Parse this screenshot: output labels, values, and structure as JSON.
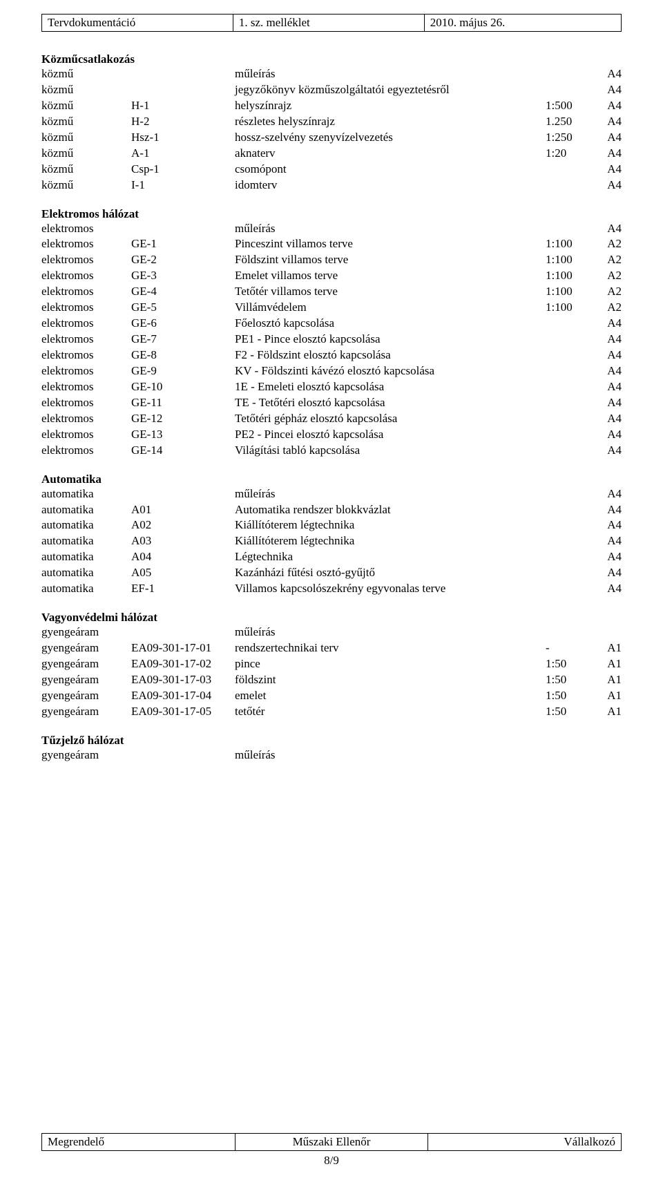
{
  "header": {
    "c1": "Tervdokumentáció",
    "c2": "1. sz. melléklet",
    "c3": "2010. május 26."
  },
  "sections": [
    {
      "title": "Közműcsatlakozás",
      "rows": [
        {
          "c1": "közmű",
          "c2": "",
          "c3": "műleírás",
          "c4": "",
          "c5": "A4"
        },
        {
          "c1": "közmű",
          "c2": "",
          "c3": "jegyzőkönyv közműszolgáltatói egyeztetésről",
          "c4": "",
          "c5": "A4"
        },
        {
          "c1": "közmű",
          "c2": "H-1",
          "c3": "helyszínrajz",
          "c4": "1:500",
          "c5": "A4"
        },
        {
          "c1": "közmű",
          "c2": "H-2",
          "c3": "részletes helyszínrajz",
          "c4": "1.250",
          "c5": "A4"
        },
        {
          "c1": "közmű",
          "c2": "Hsz-1",
          "c3": "hossz-szelvény szenyvízelvezetés",
          "c4": "1:250",
          "c5": "A4"
        },
        {
          "c1": "közmű",
          "c2": "A-1",
          "c3": "aknaterv",
          "c4": "1:20",
          "c5": "A4"
        },
        {
          "c1": "közmű",
          "c2": "Csp-1",
          "c3": "csomópont",
          "c4": "",
          "c5": "A4"
        },
        {
          "c1": "közmű",
          "c2": "I-1",
          "c3": "idomterv",
          "c4": "",
          "c5": "A4"
        }
      ]
    },
    {
      "title": "Elektromos hálózat",
      "rows": [
        {
          "c1": "elektromos",
          "c2": "",
          "c3": "műleírás",
          "c4": "",
          "c5": "A4"
        },
        {
          "c1": "elektromos",
          "c2": "GE-1",
          "c3": "Pinceszint villamos terve",
          "c4": "1:100",
          "c5": "A2"
        },
        {
          "c1": "elektromos",
          "c2": "GE-2",
          "c3": "Földszint villamos terve",
          "c4": "1:100",
          "c5": "A2"
        },
        {
          "c1": "elektromos",
          "c2": "GE-3",
          "c3": "Emelet villamos terve",
          "c4": "1:100",
          "c5": "A2"
        },
        {
          "c1": "elektromos",
          "c2": "GE-4",
          "c3": "Tetőtér villamos terve",
          "c4": "1:100",
          "c5": "A2"
        },
        {
          "c1": "elektromos",
          "c2": "GE-5",
          "c3": "Villámvédelem",
          "c4": "1:100",
          "c5": "A2"
        },
        {
          "c1": "elektromos",
          "c2": "GE-6",
          "c3": "Főelosztó kapcsolása",
          "c4": "",
          "c5": "A4"
        },
        {
          "c1": "elektromos",
          "c2": "GE-7",
          "c3": "PE1 - Pince elosztó kapcsolása",
          "c4": "",
          "c5": "A4"
        },
        {
          "c1": "elektromos",
          "c2": "GE-8",
          "c3": "F2 - Földszint elosztó kapcsolása",
          "c4": "",
          "c5": "A4"
        },
        {
          "c1": "elektromos",
          "c2": "GE-9",
          "c3": "KV - Földszinti kávézó elosztó kapcsolása",
          "c4": "",
          "c5": "A4"
        },
        {
          "c1": "elektromos",
          "c2": "GE-10",
          "c3": "1E - Emeleti elosztó kapcsolása",
          "c4": "",
          "c5": "A4"
        },
        {
          "c1": "elektromos",
          "c2": "GE-11",
          "c3": "TE - Tetőtéri elosztó kapcsolása",
          "c4": "",
          "c5": "A4"
        },
        {
          "c1": "elektromos",
          "c2": "GE-12",
          "c3": "Tetőtéri gépház elosztó kapcsolása",
          "c4": "",
          "c5": "A4"
        },
        {
          "c1": "elektromos",
          "c2": "GE-13",
          "c3": "PE2 - Pincei elosztó kapcsolása",
          "c4": "",
          "c5": "A4"
        },
        {
          "c1": "elektromos",
          "c2": "GE-14",
          "c3": "Világítási tabló kapcsolása",
          "c4": "",
          "c5": "A4"
        }
      ]
    },
    {
      "title": "Automatika",
      "rows": [
        {
          "c1": "automatika",
          "c2": "",
          "c3": "műleírás",
          "c4": "",
          "c5": "A4"
        },
        {
          "c1": "automatika",
          "c2": "A01",
          "c3": "Automatika rendszer blokkvázlat",
          "c4": "",
          "c5": "A4"
        },
        {
          "c1": "automatika",
          "c2": "A02",
          "c3": "Kiállítóterem légtechnika",
          "c4": "",
          "c5": "A4"
        },
        {
          "c1": "automatika",
          "c2": "A03",
          "c3": "Kiállítóterem légtechnika",
          "c4": "",
          "c5": "A4"
        },
        {
          "c1": "automatika",
          "c2": "A04",
          "c3": "Légtechnika",
          "c4": "",
          "c5": "A4"
        },
        {
          "c1": "automatika",
          "c2": "A05",
          "c3": "Kazánházi fűtési osztó-gyűjtő",
          "c4": "",
          "c5": "A4"
        },
        {
          "c1": "automatika",
          "c2": "EF-1",
          "c3": "Villamos kapcsolószekrény egyvonalas terve",
          "c4": "",
          "c5": "A4"
        }
      ]
    },
    {
      "title": "Vagyonvédelmi hálózat",
      "rows": [
        {
          "c1": "gyengeáram",
          "c2": "",
          "c3": "műleírás",
          "c4": "",
          "c5": ""
        },
        {
          "c1": "gyengeáram",
          "c2": "EA09-301-17-01",
          "c3": "rendszertechnikai terv",
          "c4": "-",
          "c5": "A1"
        },
        {
          "c1": "gyengeáram",
          "c2": "EA09-301-17-02",
          "c3": "pince",
          "c4": "1:50",
          "c5": "A1"
        },
        {
          "c1": "gyengeáram",
          "c2": "EA09-301-17-03",
          "c3": "földszint",
          "c4": "1:50",
          "c5": "A1"
        },
        {
          "c1": "gyengeáram",
          "c2": "EA09-301-17-04",
          "c3": "emelet",
          "c4": "1:50",
          "c5": "A1"
        },
        {
          "c1": "gyengeáram",
          "c2": "EA09-301-17-05",
          "c3": "tetőtér",
          "c4": "1:50",
          "c5": "A1"
        }
      ]
    },
    {
      "title": "Tűzjelző hálózat",
      "rows": [
        {
          "c1": "gyengeáram",
          "c2": "",
          "c3": "műleírás",
          "c4": "",
          "c5": ""
        }
      ]
    }
  ],
  "footer": {
    "c1": "Megrendelő",
    "c2": "Műszaki Ellenőr",
    "c3": "Vállalkozó",
    "page": "8/9"
  }
}
